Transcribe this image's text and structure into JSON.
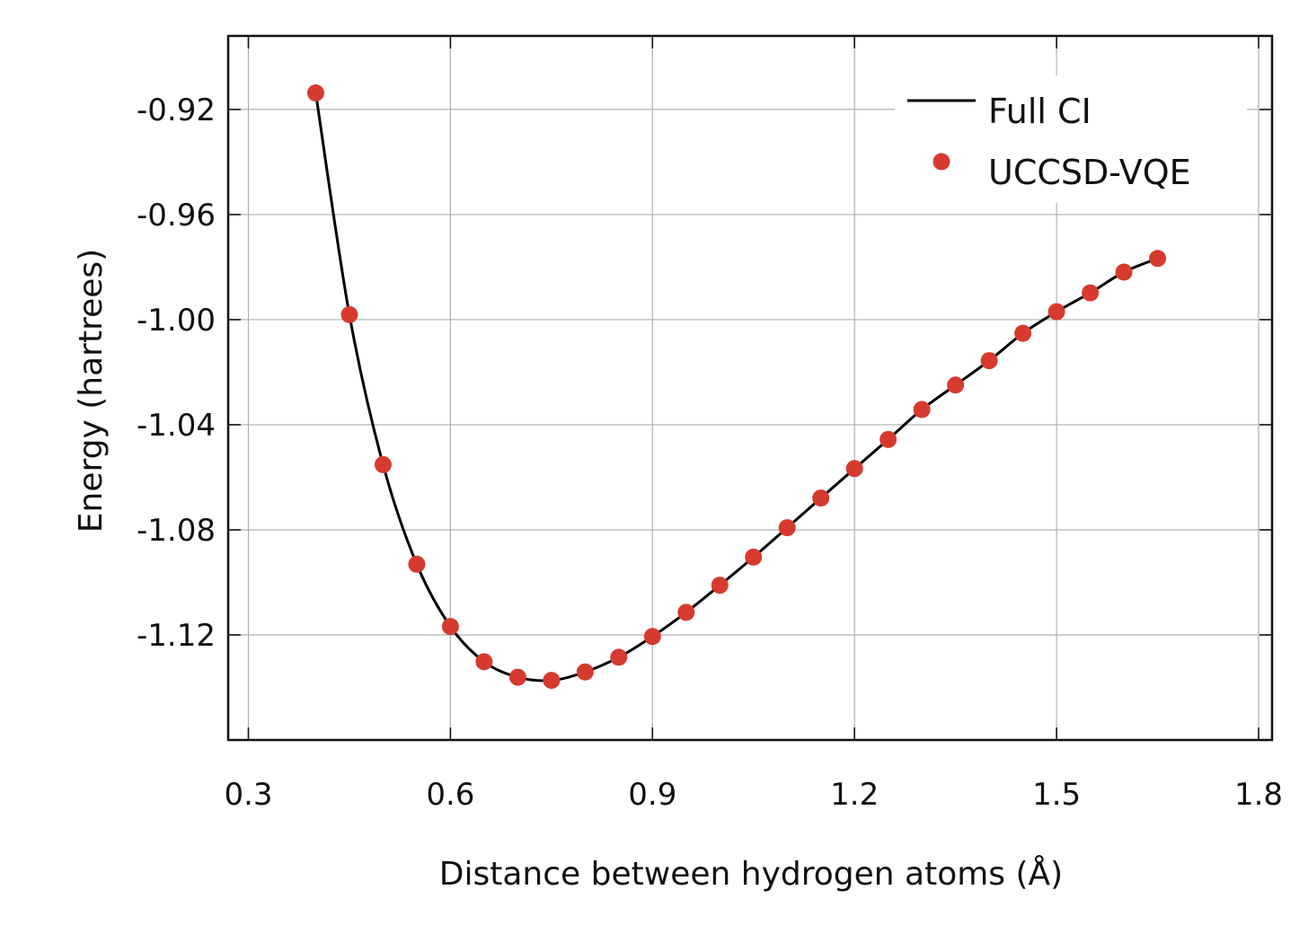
{
  "chart_data": {
    "type": "line",
    "title": "",
    "xlabel": "Distance between hydrogen atoms (Å)",
    "ylabel": "Energy (hartrees)",
    "xlim": [
      0.27,
      1.82
    ],
    "ylim": [
      -1.16,
      -0.892
    ],
    "x_ticks": [
      "0.3",
      "0.6",
      "0.9",
      "1.2",
      "1.5",
      "1.8"
    ],
    "x_tick_values": [
      0.3,
      0.6,
      0.9,
      1.2,
      1.5,
      1.8
    ],
    "y_ticks": [
      "-0.92",
      "-0.96",
      "-1.00",
      "-1.04",
      "-1.08",
      "-1.12"
    ],
    "y_tick_values": [
      -0.92,
      -0.96,
      -1.0,
      -1.04,
      -1.08,
      -1.12
    ],
    "grid": true,
    "legend_position": "top-right",
    "series": [
      {
        "name": "Full CI",
        "style": "line",
        "color": "#000000",
        "x": [
          0.4,
          0.45,
          0.5,
          0.55,
          0.6,
          0.65,
          0.7,
          0.75,
          0.8,
          0.85,
          0.9,
          0.95,
          1.0,
          1.05,
          1.1,
          1.15,
          1.2,
          1.25,
          1.3,
          1.35,
          1.4,
          1.45,
          1.5,
          1.55,
          1.6,
          1.65
        ],
        "y": [
          -0.9137,
          -0.9981,
          -1.0552,
          -1.0931,
          -1.1168,
          -1.1302,
          -1.1361,
          -1.1373,
          -1.1341,
          -1.1285,
          -1.1206,
          -1.1114,
          -1.1011,
          -1.0904,
          -1.0792,
          -1.0679,
          -1.0567,
          -1.0456,
          -1.0342,
          -1.0249,
          -1.0156,
          -1.0052,
          -0.997,
          -0.9898,
          -0.9819,
          -0.9767
        ]
      },
      {
        "name": "UCCSD-VQE",
        "style": "markers",
        "color": "#d63a2f",
        "x": [
          0.4,
          0.45,
          0.5,
          0.55,
          0.6,
          0.65,
          0.7,
          0.75,
          0.8,
          0.85,
          0.9,
          0.95,
          1.0,
          1.05,
          1.1,
          1.15,
          1.2,
          1.25,
          1.3,
          1.35,
          1.4,
          1.45,
          1.5,
          1.55,
          1.6,
          1.65
        ],
        "y": [
          -0.9137,
          -0.9981,
          -1.0552,
          -1.0931,
          -1.1168,
          -1.1302,
          -1.1361,
          -1.1373,
          -1.1341,
          -1.1285,
          -1.1206,
          -1.1114,
          -1.1011,
          -1.0904,
          -1.0792,
          -1.0679,
          -1.0567,
          -1.0456,
          -1.0342,
          -1.0249,
          -1.0156,
          -1.0052,
          -0.997,
          -0.9898,
          -0.9819,
          -0.9767
        ]
      }
    ]
  }
}
